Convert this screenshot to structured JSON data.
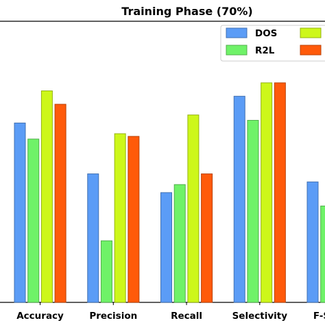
{
  "chart_data": {
    "type": "bar",
    "title": "Training Phase (70%)",
    "xlabel": "",
    "ylabel": "",
    "categories": [
      "Accuracy",
      "Precision",
      "Recall",
      "Selectivity",
      "F-Score"
    ],
    "ylim": [
      0,
      1.05
    ],
    "grid": false,
    "legend_position": "top-right",
    "series": [
      {
        "name": "DOS",
        "color": "#5b9cf6",
        "values": [
          0.67,
          0.48,
          0.41,
          0.77,
          0.45
        ]
      },
      {
        "name": "R2L",
        "color": "#6ff268",
        "values": [
          0.61,
          0.23,
          0.44,
          0.68,
          0.36
        ]
      },
      {
        "name": "",
        "color": "#cdf71a",
        "values": [
          0.79,
          0.63,
          0.7,
          0.82,
          null
        ]
      },
      {
        "name": "",
        "color": "#ff5a0a",
        "values": [
          0.74,
          0.62,
          0.48,
          0.82,
          null
        ]
      }
    ]
  }
}
